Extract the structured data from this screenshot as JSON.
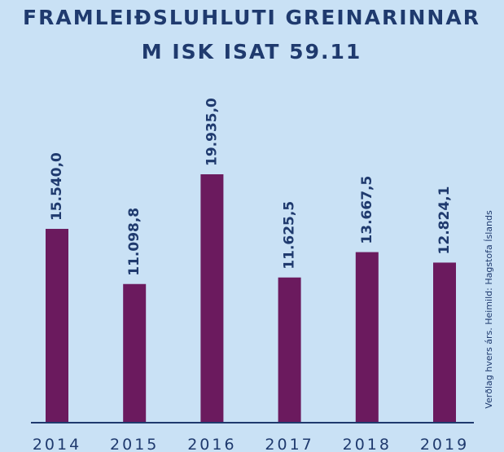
{
  "chart_data": {
    "type": "bar",
    "title": "FRAMLEIÐSLUHLUTI GREINARINNAR",
    "subtitle": "M ISK ISAT 59.11",
    "note": "Verðlag hvers árs. Heimild: Hagstofa Íslands",
    "categories": [
      "2014",
      "2015",
      "2016",
      "2017",
      "2018",
      "2019"
    ],
    "values": [
      15540.0,
      11098.8,
      19935.0,
      11625.5,
      13667.5,
      12824.1
    ],
    "value_labels": [
      "15.540,0",
      "11.098,8",
      "19.935,0",
      "11.625,5",
      "13.667,5",
      "12.824,1"
    ],
    "color": "#6b1a5e"
  }
}
